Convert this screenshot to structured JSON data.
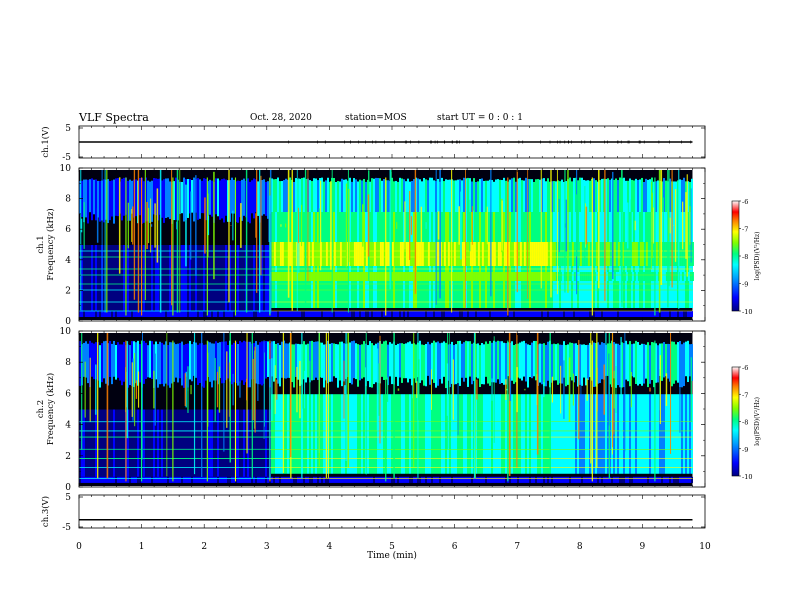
{
  "header": {
    "title": "VLF Spectra",
    "date": "Oct. 28, 2020",
    "station": "station=MOS",
    "start_ut": "start UT =  0 : 0 : 1"
  },
  "chart_data": [
    {
      "type": "line",
      "name": "ch1-voltage",
      "ylabel": "ch.1(V)",
      "ylim": [
        -5,
        5
      ],
      "yticks": [
        "5",
        "-5"
      ],
      "xlim": [
        0,
        10
      ],
      "x": [
        0,
        9.8
      ],
      "values": [
        0.0,
        0.0
      ],
      "grid": false
    },
    {
      "type": "heatmap",
      "name": "ch1-spectrogram",
      "ylabel": "ch.1\nFrequency (kHz)",
      "ylim": [
        0,
        10
      ],
      "yticks": [
        "0",
        "2",
        "4",
        "6",
        "8",
        "10"
      ],
      "xlim": [
        0,
        10
      ],
      "data_end_min": 9.8,
      "transition_min": 3.05,
      "colorbar": {
        "label": "log(PSD)(V²/Hz)",
        "range": [
          -10,
          -6
        ],
        "ticks": [
          "-6",
          "-7",
          "-8",
          "-9",
          "-10"
        ]
      }
    },
    {
      "type": "heatmap",
      "name": "ch2-spectrogram",
      "ylabel": "ch.2\nFrequency (kHz)",
      "ylim": [
        0,
        10
      ],
      "yticks": [
        "0",
        "2",
        "4",
        "6",
        "8",
        "10"
      ],
      "xlim": [
        0,
        10
      ],
      "data_end_min": 9.8,
      "transition_min": 3.05,
      "colorbar": {
        "label": "log(PSD)(V²/Hz)",
        "range": [
          -10,
          -6
        ],
        "ticks": [
          "-6",
          "-7",
          "-8",
          "-9",
          "-10"
        ]
      }
    },
    {
      "type": "line",
      "name": "ch3-voltage",
      "ylabel": "ch.3(V)",
      "ylim": [
        -5,
        5
      ],
      "yticks": [
        "5",
        "-5"
      ],
      "xlim": [
        0,
        10
      ],
      "x": [
        0,
        9.8
      ],
      "values": [
        -2.5,
        -2.5
      ],
      "grid": false
    }
  ],
  "xaxis": {
    "label": "Time (min)",
    "ticks": [
      "0",
      "1",
      "2",
      "3",
      "4",
      "5",
      "6",
      "7",
      "8",
      "9",
      "10"
    ]
  },
  "colors": {
    "colormap": [
      "#000080",
      "#0000ff",
      "#0080ff",
      "#00ffff",
      "#00ff80",
      "#80ff00",
      "#ffff00",
      "#ff8000",
      "#ff0000",
      "#ffffff"
    ],
    "background": "#000000"
  }
}
